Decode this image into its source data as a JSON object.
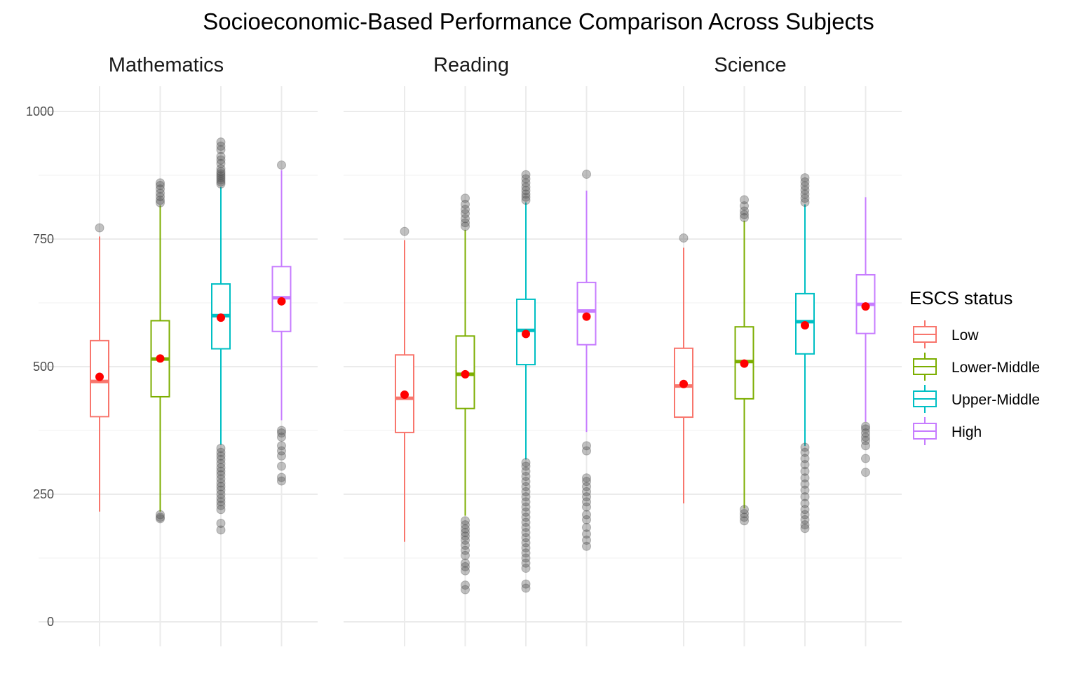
{
  "chart_data": {
    "type": "boxplot",
    "title": "Socioeconomic-Based Performance Comparison Across Subjects",
    "xlabel": "",
    "ylabel": "",
    "ylim": [
      0,
      1000
    ],
    "yticks": [
      0,
      250,
      500,
      750,
      1000
    ],
    "grid": true,
    "legend": {
      "title": "ESCS status",
      "position": "right",
      "entries": [
        "Low",
        "Lower-Middle",
        "Upper-Middle",
        "High"
      ]
    },
    "colors": {
      "Low": "#F8766D",
      "Lower-Middle": "#7CAE00",
      "Upper-Middle": "#00BFC4",
      "High": "#C77CFF",
      "mean_point": "#FF0000",
      "outlier": "#4d4d4d"
    },
    "panels": [
      {
        "name": "Mathematics",
        "groups": [
          {
            "group": "Low",
            "lower_whisker": 216,
            "q1": 402,
            "median": 471,
            "q3": 551,
            "upper_whisker": 755,
            "mean": 480,
            "outliers": [
              772
            ]
          },
          {
            "group": "Lower-Middle",
            "lower_whisker": 216,
            "q1": 441,
            "median": 515,
            "q3": 590,
            "upper_whisker": 816,
            "mean": 516,
            "outliers": [
              202,
              205,
              210,
              821,
              826,
              833,
              840,
              848,
              855,
              860
            ]
          },
          {
            "group": "Upper-Middle",
            "lower_whisker": 347,
            "q1": 535,
            "median": 600,
            "q3": 662,
            "upper_whisker": 852,
            "mean": 596,
            "outliers": [
              180,
              193,
              220,
              228,
              235,
              242,
              250,
              258,
              265,
              272,
              280,
              288,
              295,
              302,
              310,
              318,
              325,
              332,
              340,
              858,
              862,
              866,
              870,
              874,
              878,
              882,
              888,
              898,
              905,
              912,
              925,
              932,
              940
            ]
          },
          {
            "group": "High",
            "lower_whisker": 395,
            "q1": 569,
            "median": 635,
            "q3": 696,
            "upper_whisker": 885,
            "mean": 628,
            "outliers": [
              276,
              283,
              305,
              325,
              335,
              345,
              362,
              370,
              375,
              895
            ]
          }
        ]
      },
      {
        "name": "Reading",
        "groups": [
          {
            "group": "Low",
            "lower_whisker": 157,
            "q1": 371,
            "median": 438,
            "q3": 523,
            "upper_whisker": 748,
            "mean": 445,
            "outliers": [
              765
            ]
          },
          {
            "group": "Lower-Middle",
            "lower_whisker": 208,
            "q1": 418,
            "median": 485,
            "q3": 560,
            "upper_whisker": 768,
            "mean": 485,
            "outliers": [
              63,
              72,
              100,
              108,
              115,
              130,
              140,
              150,
              160,
              168,
              175,
              182,
              190,
              198,
              775,
              782,
              790,
              800,
              808,
              818,
              830
            ]
          },
          {
            "group": "Upper-Middle",
            "lower_whisker": 318,
            "q1": 504,
            "median": 571,
            "q3": 632,
            "upper_whisker": 822,
            "mean": 564,
            "outliers": [
              66,
              74,
              105,
              115,
              125,
              135,
              145,
              155,
              165,
              175,
              185,
              195,
              205,
              215,
              225,
              235,
              245,
              255,
              265,
              275,
              285,
              295,
              305,
              312,
              826,
              832,
              838,
              845,
              852,
              860,
              868,
              876
            ]
          },
          {
            "group": "High",
            "lower_whisker": 372,
            "q1": 543,
            "median": 609,
            "q3": 665,
            "upper_whisker": 845,
            "mean": 598,
            "outliers": [
              148,
              160,
              172,
              185,
              200,
              210,
              225,
              235,
              245,
              255,
              265,
              275,
              282,
              335,
              345,
              877
            ]
          }
        ]
      },
      {
        "name": "Science",
        "groups": [
          {
            "group": "Low",
            "lower_whisker": 232,
            "q1": 401,
            "median": 462,
            "q3": 536,
            "upper_whisker": 733,
            "mean": 466,
            "outliers": [
              752
            ]
          },
          {
            "group": "Lower-Middle",
            "lower_whisker": 222,
            "q1": 437,
            "median": 510,
            "q3": 578,
            "upper_whisker": 786,
            "mean": 506,
            "outliers": [
              198,
              205,
              212,
              220,
              792,
              798,
              805,
              815,
              827
            ]
          },
          {
            "group": "Upper-Middle",
            "lower_whisker": 345,
            "q1": 525,
            "median": 588,
            "q3": 643,
            "upper_whisker": 818,
            "mean": 581,
            "outliers": [
              183,
              190,
              200,
              210,
              220,
              232,
              245,
              258,
              270,
              282,
              295,
              308,
              320,
              332,
              342,
              822,
              830,
              838,
              846,
              854,
              862,
              870
            ]
          },
          {
            "group": "High",
            "lower_whisker": 392,
            "q1": 565,
            "median": 622,
            "q3": 680,
            "upper_whisker": 832,
            "mean": 618,
            "outliers": [
              293,
              320,
              345,
              355,
              362,
              370,
              378,
              383
            ]
          }
        ]
      }
    ]
  }
}
